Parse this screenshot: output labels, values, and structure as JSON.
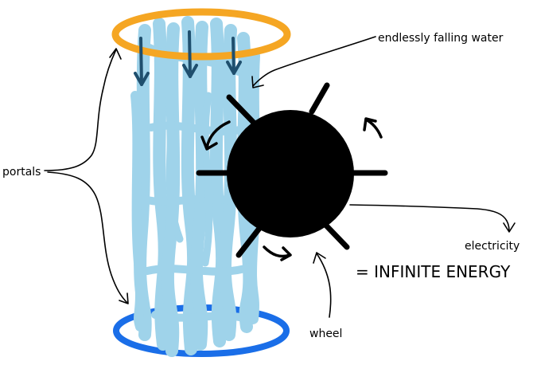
{
  "labels": {
    "falling_water": "endlessly falling water",
    "portals": "portals",
    "electricity": "electricity",
    "infinite_energy": "= INFINITE ENERGY",
    "wheel": "wheel"
  },
  "colors": {
    "top_portal": "#f5a623",
    "bottom_portal": "#1a6ee8",
    "water": "#9fd3ea",
    "water_arrows": "#1f4f6e",
    "wheel": "#000000",
    "ink": "#000000"
  }
}
